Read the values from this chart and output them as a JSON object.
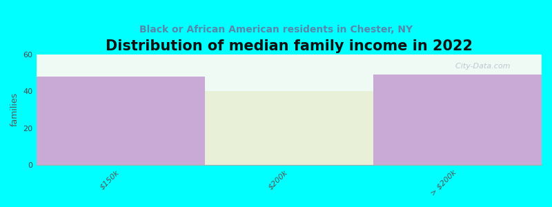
{
  "title": "Distribution of median family income in 2022",
  "subtitle": "Black or African American residents in Chester, NY",
  "categories": [
    "$150k",
    "$200k",
    "> $200k"
  ],
  "values": [
    48,
    40,
    49
  ],
  "bar_colors": [
    "#c9aad6",
    "#e8f0d8",
    "#c9aad6"
  ],
  "background_color": "#00ffff",
  "plot_bg_color": "#f0faf4",
  "ylabel": "families",
  "ylim": [
    0,
    60
  ],
  "yticks": [
    0,
    20,
    40,
    60
  ],
  "title_fontsize": 15,
  "subtitle_fontsize": 10,
  "subtitle_color": "#5588aa",
  "watermark": "  City-Data.com"
}
